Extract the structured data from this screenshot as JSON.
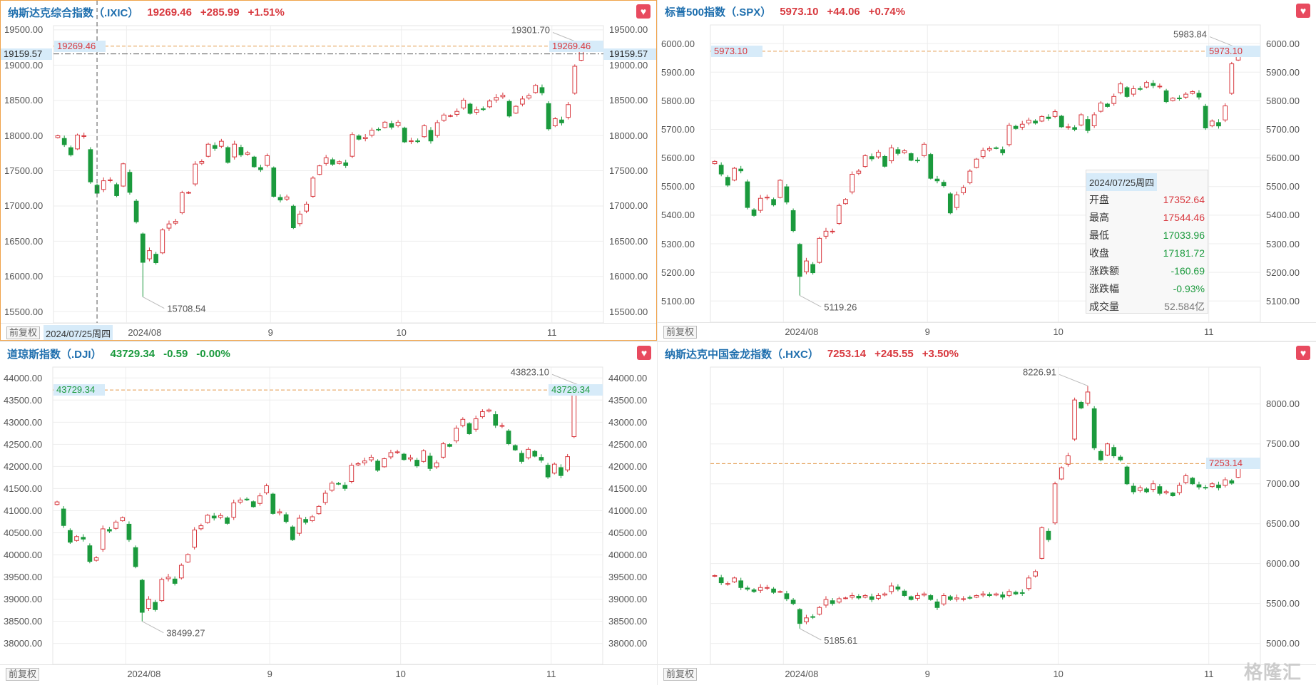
{
  "charts": [
    {
      "title": "纳斯达克综合指数（.IXIC）",
      "price": "19269.46",
      "change": "+285.99",
      "pct": "+1.51%",
      "trend": "up",
      "y_range": [
        15340,
        19560
      ],
      "y_ticks": [
        "19500.00",
        "19000.00",
        "18500.00",
        "18000.00",
        "17500.00",
        "17000.00",
        "16500.00",
        "16000.00",
        "15500.00"
      ],
      "left_axis": true,
      "closes": [
        17996,
        17871,
        17726,
        18007,
        17997,
        17342,
        17181.72,
        17358,
        17370,
        17147,
        17599,
        17194,
        16776,
        16200,
        16366,
        16195,
        16660,
        16745,
        16781,
        17188,
        17192,
        17595,
        17632,
        17877,
        17817,
        17919,
        17619,
        17878,
        17726,
        17754,
        17557,
        17516,
        17714,
        17137,
        17085,
        17128,
        16691,
        16885,
        17026,
        17396,
        17570,
        17684,
        17593,
        17629,
        17574,
        18014,
        17948,
        17974,
        18075,
        18082,
        18190,
        18119,
        18189,
        17910,
        17925,
        17918,
        18138,
        17923,
        18183,
        18291,
        18282,
        18343,
        18502,
        18315,
        18367,
        18373,
        18490,
        18540,
        18573,
        18277,
        18415,
        18519,
        18567,
        18712,
        18607,
        18095,
        18239,
        18180,
        18439,
        18983,
        19269.46
      ],
      "price_level": 19269.46,
      "price_label": "19269.46",
      "high_label": {
        "index": 80,
        "value": 19301.7,
        "text": "19301.70"
      },
      "low_label": {
        "index": 13,
        "value": 15708.54,
        "text": "15708.54"
      },
      "months": [
        {
          "label": "2024/08",
          "index": 11
        },
        {
          "label": "9",
          "index": 33
        },
        {
          "label": "10",
          "index": 53
        },
        {
          "label": "11",
          "index": 76
        }
      ],
      "adj_button": "前复权"
    },
    {
      "title": "标普500指数（.SPX）",
      "price": "5973.10",
      "change": "+44.06",
      "pct": "+0.74%",
      "trend": "up",
      "y_range": [
        5026,
        6065
      ],
      "y_ticks": [
        "6000.00",
        "5900.00",
        "5800.00",
        "5700.00",
        "5600.00",
        "5500.00",
        "5400.00",
        "5300.00",
        "5200.00",
        "5100.00"
      ],
      "left_axis": true,
      "closes": [
        5588,
        5544,
        5505,
        5564,
        5555,
        5427,
        5399,
        5459,
        5463,
        5436,
        5522,
        5446,
        5346,
        5186,
        5240,
        5199,
        5319,
        5344,
        5344,
        5434,
        5455,
        5543,
        5554,
        5608,
        5597,
        5620,
        5571,
        5635,
        5616,
        5625,
        5592,
        5591,
        5648,
        5529,
        5520,
        5503,
        5408,
        5471,
        5496,
        5554,
        5596,
        5626,
        5633,
        5634,
        5618,
        5714,
        5703,
        5718,
        5732,
        5722,
        5745,
        5738,
        5762,
        5709,
        5709,
        5700,
        5751,
        5696,
        5751,
        5792,
        5780,
        5815,
        5859,
        5815,
        5842,
        5841,
        5864,
        5853,
        5851,
        5797,
        5809,
        5808,
        5823,
        5832,
        5813,
        5705,
        5729,
        5712,
        5782,
        5929,
        5973.1
      ],
      "price_level": 5973.1,
      "price_label": "5973.10",
      "high_label": {
        "index": 80,
        "value": 5983.84,
        "text": "5983.84"
      },
      "low_label": {
        "index": 13,
        "value": 5119.26,
        "text": "5119.26"
      },
      "months": [
        {
          "label": "2024/08",
          "index": 11
        },
        {
          "label": "9",
          "index": 33
        },
        {
          "label": "10",
          "index": 53
        },
        {
          "label": "11",
          "index": 76
        }
      ],
      "adj_button": "前复权"
    },
    {
      "title": "道琼斯指数（.DJI）",
      "price": "43729.34",
      "change": "-0.59",
      "pct": "-0.00%",
      "trend": "down",
      "y_range": [
        37527,
        44246
      ],
      "y_ticks": [
        "44000.00",
        "43500.00",
        "43000.00",
        "42500.00",
        "42000.00",
        "41500.00",
        "41000.00",
        "40500.00",
        "40000.00",
        "39500.00",
        "39000.00",
        "38500.00",
        "38000.00"
      ],
      "left_axis": true,
      "closes": [
        41198,
        40665,
        40288,
        40415,
        40358,
        39854,
        39935,
        40589,
        40540,
        40743,
        40843,
        40348,
        39737,
        38703,
        38998,
        38763,
        39446,
        39498,
        39357,
        39766,
        40009,
        40563,
        40660,
        40897,
        40834,
        40890,
        40713,
        41175,
        41240,
        41251,
        41091,
        41335,
        41563,
        40937,
        40975,
        40756,
        40345,
        40830,
        40737,
        40862,
        41097,
        41394,
        41622,
        41606,
        41503,
        42025,
        42063,
        42124,
        42208,
        41915,
        42175,
        42313,
        42330,
        42156,
        42196,
        42012,
        42352,
        41954,
        42080,
        42512,
        42454,
        42864,
        43065,
        42740,
        43077,
        43239,
        43276,
        42931,
        42924,
        42514,
        42374,
        42114,
        42387,
        42233,
        42141,
        41763,
        42052,
        41794,
        42222,
        43729.93,
        43729.34
      ],
      "price_level": 43729.34,
      "price_label": "43729.34",
      "high_label": {
        "index": 80,
        "value": 43823.1,
        "text": "43823.10"
      },
      "low_label": {
        "index": 13,
        "value": 38499.27,
        "text": "38499.27"
      },
      "months": [
        {
          "label": "2024/08",
          "index": 11
        },
        {
          "label": "9",
          "index": 33
        },
        {
          "label": "10",
          "index": 53
        },
        {
          "label": "11",
          "index": 76
        }
      ],
      "adj_button": "前复权"
    },
    {
      "title": "纳斯达克中国金龙指数（.HXC）",
      "price": "7253.14",
      "change": "+245.55",
      "pct": "+3.50%",
      "trend": "up",
      "y_range": [
        4738,
        8462
      ],
      "y_ticks": [
        "8000.00",
        "7500.00",
        "7000.00",
        "6500.00",
        "6000.00",
        "5500.00",
        "5000.00"
      ],
      "left_axis": false,
      "closes": [
        5850,
        5760,
        5750,
        5820,
        5700,
        5680,
        5650,
        5700,
        5700,
        5640,
        5650,
        5560,
        5500,
        5250,
        5320,
        5330,
        5450,
        5550,
        5500,
        5560,
        5570,
        5600,
        5570,
        5600,
        5550,
        5600,
        5620,
        5720,
        5680,
        5600,
        5550,
        5600,
        5620,
        5550,
        5450,
        5600,
        5550,
        5570,
        5560,
        5570,
        5600,
        5620,
        5600,
        5620,
        5580,
        5650,
        5620,
        5630,
        5820,
        5900,
        6450,
        6300,
        7000,
        7200,
        7350,
        8050,
        7950,
        8150,
        7450,
        7300,
        7500,
        7350,
        7300,
        7000,
        6900,
        6950,
        6900,
        7000,
        6880,
        6900,
        6850,
        6980,
        7100,
        7000,
        6960,
        6950,
        7000,
        6950,
        7050,
        7007.59,
        7253.14
      ],
      "price_level": 7253.14,
      "price_label": "7253.14",
      "high_label": {
        "index": 57,
        "value": 8226.91,
        "text": "8226.91"
      },
      "low_label": {
        "index": 13,
        "value": 5185.61,
        "text": "5185.61"
      },
      "months": [
        {
          "label": "2024/08",
          "index": 11
        },
        {
          "label": "9",
          "index": 33
        },
        {
          "label": "10",
          "index": 53
        },
        {
          "label": "11",
          "index": 76
        }
      ],
      "adj_button": "前复权"
    }
  ],
  "crosshair": {
    "index": 6,
    "value": 19159.57,
    "value_label": "19159.57",
    "date_label": "2024/07/25周四"
  },
  "tooltip": {
    "date": "2024/07/25周四",
    "rows": [
      {
        "k": "开盘",
        "v": "17352.64",
        "c": "up"
      },
      {
        "k": "最高",
        "v": "17544.46",
        "c": "up"
      },
      {
        "k": "最低",
        "v": "17033.96",
        "c": "down"
      },
      {
        "k": "收盘",
        "v": "17181.72",
        "c": "down"
      },
      {
        "k": "涨跌额",
        "v": "-160.69",
        "c": "down"
      },
      {
        "k": "涨跌幅",
        "v": "-0.93%",
        "c": "down"
      },
      {
        "k": "成交量",
        "v": "52.584亿",
        "c": "neutral"
      }
    ]
  },
  "colors": {
    "up": "#d8393f",
    "down": "#1b9a3d",
    "price_line": "#e39a4c",
    "grid": "#ededed"
  },
  "watermark": "格隆汇"
}
